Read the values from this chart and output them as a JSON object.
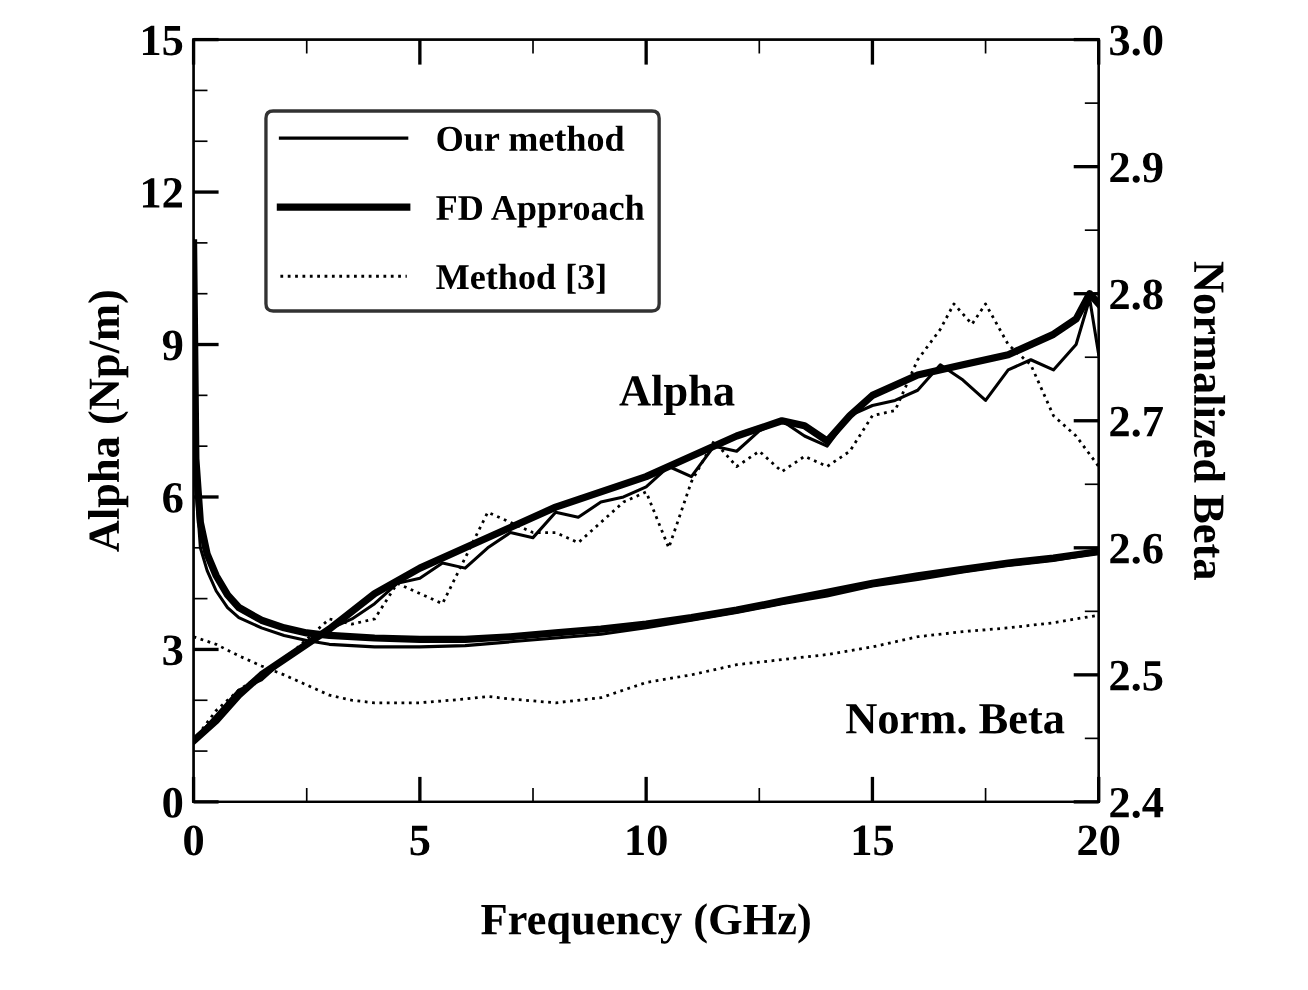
{
  "chart_data": {
    "type": "line",
    "xlabel": "Frequency (GHz)",
    "ylabel": "Alpha (Np/m)",
    "y2label": "Normalized Beta",
    "xlim": [
      0,
      20
    ],
    "xticks": [
      0,
      5,
      10,
      15,
      20
    ],
    "ylim": [
      0,
      15
    ],
    "yticks": [
      0,
      3,
      6,
      9,
      12,
      15
    ],
    "y2lim": [
      2.4,
      3.0
    ],
    "y2ticks": [
      {
        "value": 2.4,
        "label": "2.4"
      },
      {
        "value": 2.5,
        "label": "2.5"
      },
      {
        "value": 2.6,
        "label": "2.6"
      },
      {
        "value": 2.7,
        "label": "2.7"
      },
      {
        "value": 2.8,
        "label": "2.8"
      },
      {
        "value": 2.9,
        "label": "2.9"
      },
      {
        "value": 3.0,
        "label": "3.0"
      }
    ],
    "grid": false,
    "legend": "top left",
    "marker": "none",
    "annotations": [
      "Alpha",
      "Norm. Beta"
    ],
    "series": [
      {
        "name": "Our method",
        "color": "#000000",
        "line_style": "solid",
        "x": [
          0,
          0.5,
          1,
          1.5,
          2,
          2.5,
          3,
          3.5,
          4,
          4.5,
          5,
          5.5,
          6,
          6.5,
          7,
          7.5,
          8,
          8.5,
          9,
          9.5,
          10,
          10.5,
          11,
          11.5,
          12,
          12.5,
          13,
          13.5,
          14,
          14.5,
          15,
          15.5,
          16,
          16.5,
          17,
          17.5,
          18,
          18.5,
          19,
          19.5,
          19.8,
          20
        ],
        "values": [
          1.2,
          1.7,
          2.2,
          2.4,
          2.8,
          3.1,
          3.4,
          3.6,
          3.9,
          4.3,
          4.4,
          4.7,
          4.6,
          5.0,
          5.3,
          5.2,
          5.7,
          5.6,
          5.9,
          6.0,
          6.2,
          6.6,
          6.4,
          7.0,
          6.9,
          7.3,
          7.5,
          7.2,
          7.0,
          7.6,
          7.8,
          7.9,
          8.1,
          8.6,
          8.3,
          7.9,
          8.5,
          8.7,
          8.5,
          9.0,
          9.9,
          8.8
        ]
      },
      {
        "name": "FD Approach",
        "color": "#000000",
        "line_style": "solid",
        "x": [
          0,
          0.5,
          1,
          1.5,
          2,
          2.5,
          3,
          4,
          5,
          6,
          7,
          8,
          9,
          10,
          11,
          12,
          13,
          13.5,
          14,
          14.5,
          15,
          16,
          17,
          18,
          19,
          19.5,
          19.8,
          20
        ],
        "values": [
          1.2,
          1.6,
          2.1,
          2.5,
          2.8,
          3.1,
          3.4,
          4.1,
          4.6,
          5.0,
          5.4,
          5.8,
          6.1,
          6.4,
          6.8,
          7.2,
          7.5,
          7.4,
          7.1,
          7.6,
          8.0,
          8.4,
          8.6,
          8.8,
          9.2,
          9.5,
          10.0,
          9.8
        ]
      },
      {
        "name": "Method [3]",
        "color": "#000000",
        "line_style": "dotted",
        "x": [
          0,
          0.5,
          1,
          1.5,
          2,
          2.5,
          3,
          3.5,
          4,
          4.5,
          5,
          5.5,
          6,
          6.5,
          7,
          7.5,
          8,
          8.5,
          9,
          9.5,
          10,
          10.5,
          11,
          11.5,
          12,
          12.5,
          13,
          13.5,
          14,
          14.5,
          15,
          15.5,
          16,
          16.5,
          16.8,
          17.2,
          17.5,
          18,
          18.5,
          19,
          19.5,
          20
        ],
        "values": [
          1.2,
          1.8,
          2.2,
          2.5,
          2.8,
          3.2,
          3.6,
          3.5,
          3.6,
          4.3,
          4.1,
          3.9,
          4.8,
          5.7,
          5.5,
          5.3,
          5.3,
          5.1,
          5.5,
          5.9,
          6.1,
          5.0,
          6.3,
          7.1,
          6.6,
          6.9,
          6.5,
          6.8,
          6.6,
          6.9,
          7.6,
          7.7,
          8.7,
          9.3,
          9.8,
          9.4,
          9.8,
          9.0,
          8.6,
          7.6,
          7.2,
          6.6
        ]
      },
      {
        "axis": "y2",
        "color": "#000000",
        "line_style": "solid",
        "x": [
          0,
          0.05,
          0.15,
          0.3,
          0.5,
          0.75,
          1,
          1.5,
          2,
          2.5,
          3,
          4,
          5,
          6,
          7,
          8,
          9,
          10,
          11,
          12,
          13,
          14,
          15,
          16,
          17,
          18,
          19,
          20
        ],
        "values": [
          2.84,
          2.65,
          2.6,
          2.582,
          2.566,
          2.553,
          2.545,
          2.537,
          2.531,
          2.527,
          2.524,
          2.522,
          2.522,
          2.523,
          2.526,
          2.529,
          2.532,
          2.537,
          2.543,
          2.549,
          2.556,
          2.562,
          2.57,
          2.575,
          2.581,
          2.586,
          2.59,
          2.596
        ]
      },
      {
        "axis": "y2",
        "color": "#000000",
        "line_style": "solid",
        "x": [
          0,
          0.05,
          0.15,
          0.3,
          0.5,
          0.75,
          1,
          1.5,
          2,
          2.5,
          3,
          4,
          5,
          6,
          7,
          8,
          9,
          10,
          11,
          12,
          13,
          14,
          15,
          16,
          17,
          18,
          19,
          20
        ],
        "values": [
          2.84,
          2.67,
          2.62,
          2.595,
          2.578,
          2.563,
          2.553,
          2.543,
          2.537,
          2.533,
          2.531,
          2.529,
          2.528,
          2.528,
          2.53,
          2.533,
          2.536,
          2.54,
          2.545,
          2.551,
          2.558,
          2.565,
          2.572,
          2.578,
          2.583,
          2.588,
          2.592,
          2.597
        ]
      },
      {
        "axis": "y2",
        "color": "#000000",
        "line_style": "dotted",
        "x": [
          0,
          0.5,
          1,
          1.5,
          2,
          2.5,
          3,
          3.5,
          4,
          5,
          6,
          6.5,
          7,
          8,
          9,
          10,
          11,
          12,
          13,
          14,
          15,
          16,
          17,
          18,
          19,
          20
        ],
        "values": [
          2.53,
          2.524,
          2.515,
          2.507,
          2.5,
          2.492,
          2.484,
          2.48,
          2.478,
          2.478,
          2.481,
          2.483,
          2.481,
          2.478,
          2.482,
          2.494,
          2.5,
          2.508,
          2.512,
          2.516,
          2.522,
          2.53,
          2.534,
          2.537,
          2.541,
          2.547
        ]
      }
    ]
  }
}
